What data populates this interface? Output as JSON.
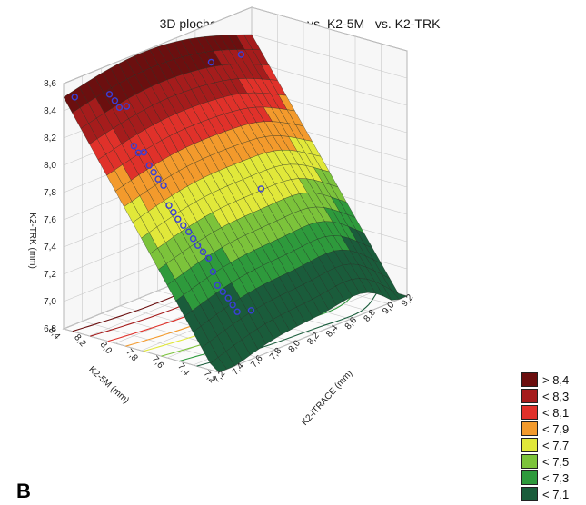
{
  "panel_label": "B",
  "chart_data": {
    "type": "surface3d",
    "title": "3D plocha : K2-iTRACE    vs. K2-5M   vs. K2-TRK",
    "xlabel": "K2-iTRACE (mm)",
    "ylabel": "K2-5M (mm)",
    "zlabel": "K2-TRK (mm)",
    "xlim": [
      7.2,
      9.2
    ],
    "ylim": [
      7.2,
      8.4
    ],
    "zlim": [
      6.8,
      8.6
    ],
    "x_ticks": [
      "7,2",
      "7,4",
      "7,6",
      "7,8",
      "8,0",
      "8,2",
      "8,4",
      "8,6",
      "8,8",
      "9,0",
      "9,2"
    ],
    "y_ticks": [
      "7,2",
      "7,4",
      "7,6",
      "7,8",
      "8,0",
      "8,2",
      "8,4"
    ],
    "z_ticks": [
      "6,8",
      "7,0",
      "7,2",
      "7,4",
      "7,6",
      "7,8",
      "8,0",
      "8,2",
      "8,4",
      "8,6"
    ],
    "grid": true,
    "contours_on_floor": true,
    "legend_position": "bottom-right",
    "legend": [
      {
        "label": "> 8,4",
        "color": "#6b0f0f"
      },
      {
        "label": "< 8,3",
        "color": "#a51c1c"
      },
      {
        "label": "< 8,1",
        "color": "#e0312a"
      },
      {
        "label": "< 7,9",
        "color": "#f39a2c"
      },
      {
        "label": "< 7,7",
        "color": "#e1e83a"
      },
      {
        "label": "< 7,5",
        "color": "#7cc33b"
      },
      {
        "label": "< 7,3",
        "color": "#2e9a3c"
      },
      {
        "label": "< 7,1",
        "color": "#1a5c3b"
      }
    ],
    "points_color": "#3a3fd6",
    "points": [
      {
        "x": 7.25,
        "y": 8.35,
        "z": 8.5
      },
      {
        "x": 8.7,
        "y": 8.35,
        "z": 8.35
      },
      {
        "x": 8.95,
        "y": 8.3,
        "z": 8.35
      },
      {
        "x": 7.55,
        "y": 8.3,
        "z": 8.45
      },
      {
        "x": 7.58,
        "y": 8.28,
        "z": 8.4
      },
      {
        "x": 7.6,
        "y": 8.26,
        "z": 8.35
      },
      {
        "x": 7.65,
        "y": 8.24,
        "z": 8.35
      },
      {
        "x": 7.7,
        "y": 8.22,
        "z": 8.05
      },
      {
        "x": 7.72,
        "y": 8.2,
        "z": 8.0
      },
      {
        "x": 7.75,
        "y": 8.18,
        "z": 8.0
      },
      {
        "x": 7.78,
        "y": 8.16,
        "z": 7.9
      },
      {
        "x": 7.8,
        "y": 8.14,
        "z": 7.85
      },
      {
        "x": 7.82,
        "y": 8.12,
        "z": 7.8
      },
      {
        "x": 7.85,
        "y": 8.1,
        "z": 7.75
      },
      {
        "x": 7.88,
        "y": 8.08,
        "z": 7.6
      },
      {
        "x": 7.9,
        "y": 8.06,
        "z": 7.55
      },
      {
        "x": 7.92,
        "y": 8.04,
        "z": 7.5
      },
      {
        "x": 7.95,
        "y": 8.02,
        "z": 7.45
      },
      {
        "x": 7.98,
        "y": 8.0,
        "z": 7.4
      },
      {
        "x": 8.0,
        "y": 7.98,
        "z": 7.35
      },
      {
        "x": 8.02,
        "y": 7.96,
        "z": 7.3
      },
      {
        "x": 8.05,
        "y": 7.94,
        "z": 7.25
      },
      {
        "x": 8.08,
        "y": 7.92,
        "z": 7.2
      },
      {
        "x": 8.1,
        "y": 7.9,
        "z": 7.1
      },
      {
        "x": 8.12,
        "y": 7.88,
        "z": 7.0
      },
      {
        "x": 8.15,
        "y": 7.86,
        "z": 6.95
      },
      {
        "x": 8.18,
        "y": 7.84,
        "z": 6.9
      },
      {
        "x": 8.2,
        "y": 7.82,
        "z": 6.85
      },
      {
        "x": 8.22,
        "y": 7.8,
        "z": 6.8
      },
      {
        "x": 8.3,
        "y": 7.75,
        "z": 6.8
      },
      {
        "x": 8.75,
        "y": 8.0,
        "z": 7.5
      }
    ]
  }
}
